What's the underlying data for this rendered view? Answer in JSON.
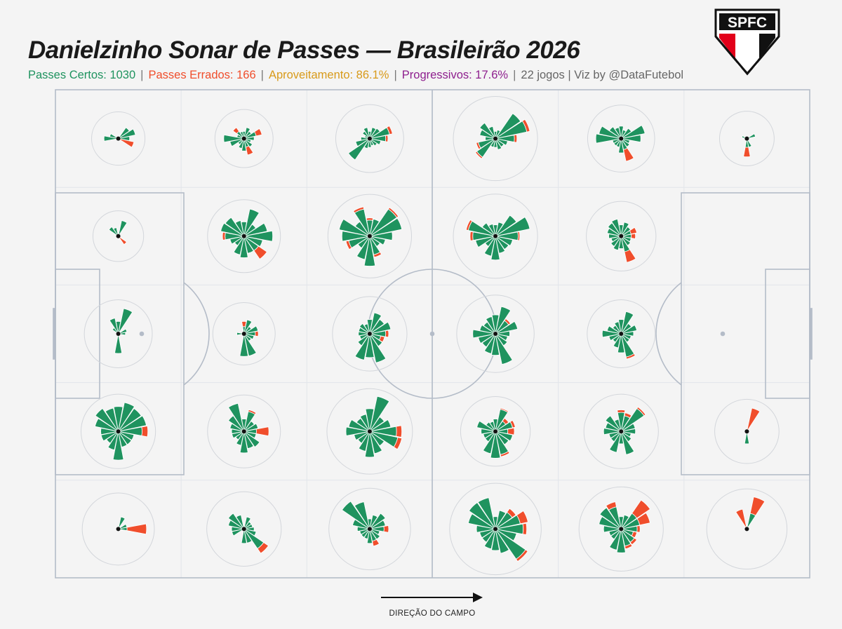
{
  "title": "Danielzinho Sonar de Passes — Brasileirão 2026",
  "subtitle": {
    "completed_label": "Passes Certos: 1030",
    "missed_label": "Passes Errados: 166",
    "accuracy_label": "Aproveitamento: 86.1%",
    "progressive_label": "Progressivos: 17.6%",
    "meta_label": "22 jogos | Viz by @DataFutebol",
    "separator": "|"
  },
  "logo": {
    "text": "SPFC"
  },
  "direction_label": "DIREÇÃO DO CAMPO",
  "colors": {
    "completed": "#1f935f",
    "missed": "#f04e2c",
    "accuracy": "#d89a1a",
    "progressive": "#8e1f8e",
    "meta": "#666666",
    "pitch_lines": "#b4bcc8",
    "background": "#f4f4f4"
  },
  "chart_data": {
    "type": "polar-bar-grid",
    "metric": "passes per direction (completed / missed)",
    "grid": {
      "columns": 6,
      "rows": 5
    },
    "attack_direction": "left-to-right",
    "totals": {
      "completed": 1030,
      "missed": 166,
      "accuracy_pct": 86.1,
      "progressive_pct": 17.6,
      "matches": 22
    },
    "sector_angles_deg": [
      0,
      22.5,
      45,
      67.5,
      90,
      112.5,
      135,
      157.5,
      180,
      202.5,
      225,
      247.5,
      270,
      292.5,
      315,
      337.5
    ],
    "zones": [
      {
        "col": 0,
        "row": 0,
        "completed": [
          5,
          12,
          7,
          0,
          0,
          0,
          0,
          3,
          8,
          0,
          0,
          0,
          0,
          0,
          0,
          0
        ],
        "missed": [
          0,
          0,
          0,
          0,
          0,
          0,
          0,
          0,
          0,
          0,
          0,
          0,
          0,
          0,
          0,
          10
        ]
      },
      {
        "col": 1,
        "row": 0,
        "completed": [
          4,
          6,
          3,
          5,
          2,
          2,
          3,
          2,
          16,
          8,
          2,
          4,
          6,
          3,
          4,
          2
        ],
        "missed": [
          0,
          7,
          0,
          0,
          0,
          0,
          4,
          0,
          0,
          0,
          0,
          0,
          0,
          8,
          0,
          0
        ]
      },
      {
        "col": 2,
        "row": 0,
        "completed": [
          10,
          16,
          6,
          5,
          2,
          5,
          3,
          1,
          3,
          8,
          26,
          4,
          3,
          2,
          3,
          5
        ],
        "missed": [
          3,
          5,
          0,
          0,
          0,
          0,
          0,
          0,
          0,
          0,
          0,
          0,
          0,
          0,
          0,
          0
        ]
      },
      {
        "col": 3,
        "row": 0,
        "completed": [
          14,
          40,
          36,
          3,
          2,
          6,
          14,
          10,
          4,
          12,
          20,
          3,
          3,
          5,
          4,
          6
        ],
        "missed": [
          4,
          8,
          0,
          0,
          0,
          0,
          0,
          0,
          0,
          3,
          3,
          0,
          0,
          0,
          0,
          0
        ]
      },
      {
        "col": 4,
        "row": 0,
        "completed": [
          15,
          23,
          6,
          3,
          6,
          5,
          8,
          20,
          25,
          3,
          3,
          3,
          8,
          5,
          4,
          3
        ],
        "missed": [
          0,
          0,
          0,
          0,
          0,
          0,
          0,
          0,
          0,
          0,
          0,
          0,
          0,
          16,
          0,
          0
        ]
      },
      {
        "col": 5,
        "row": 0,
        "completed": [
          0,
          3,
          0,
          0,
          0,
          0,
          0,
          1,
          0,
          0,
          0,
          0,
          3,
          3,
          0,
          0
        ],
        "missed": [
          0,
          0,
          0,
          0,
          0,
          0,
          0,
          0,
          0,
          0,
          0,
          0,
          10,
          0,
          0,
          0
        ]
      },
      {
        "col": 0,
        "row": 1,
        "completed": [
          0,
          0,
          0,
          10,
          0,
          3,
          5,
          0,
          0,
          0,
          0,
          0,
          0,
          0,
          0,
          0
        ],
        "missed": [
          0,
          0,
          0,
          0,
          0,
          0,
          0,
          0,
          0,
          0,
          0,
          0,
          0,
          0,
          4,
          0
        ]
      },
      {
        "col": 1,
        "row": 1,
        "completed": [
          32,
          22,
          8,
          30,
          8,
          10,
          20,
          22,
          14,
          8,
          5,
          14,
          18,
          12,
          12,
          14
        ],
        "missed": [
          0,
          0,
          0,
          0,
          0,
          0,
          0,
          0,
          4,
          0,
          0,
          0,
          0,
          0,
          18,
          0
        ]
      },
      {
        "col": 2,
        "row": 1,
        "completed": [
          20,
          42,
          42,
          12,
          10,
          30,
          12,
          38,
          30,
          18,
          8,
          22,
          35,
          14,
          6,
          10
        ],
        "missed": [
          0,
          0,
          5,
          0,
          3,
          5,
          0,
          0,
          0,
          5,
          0,
          0,
          0,
          4,
          0,
          0
        ]
      },
      {
        "col": 3,
        "row": 1,
        "completed": [
          20,
          48,
          25,
          8,
          5,
          6,
          10,
          30,
          20,
          16,
          6,
          16,
          22,
          12,
          10,
          12
        ],
        "missed": [
          3,
          0,
          0,
          0,
          0,
          0,
          0,
          5,
          5,
          0,
          0,
          0,
          0,
          0,
          0,
          0
        ]
      },
      {
        "col": 4,
        "row": 1,
        "completed": [
          4,
          4,
          5,
          8,
          5,
          12,
          10,
          8,
          6,
          4,
          6,
          8,
          6,
          10,
          5,
          4
        ],
        "missed": [
          4,
          6,
          0,
          0,
          0,
          0,
          0,
          0,
          0,
          0,
          0,
          0,
          0,
          18,
          0,
          0
        ]
      },
      {
        "col": 5,
        "row": 1,
        "completed": [
          0,
          0,
          0,
          0,
          0,
          0,
          0,
          0,
          0,
          0,
          0,
          0,
          0,
          0,
          0,
          0
        ],
        "missed": [
          0,
          0,
          0,
          0,
          0,
          0,
          0,
          0,
          0,
          0,
          0,
          0,
          0,
          0,
          0,
          0
        ]
      },
      {
        "col": 0,
        "row": 2,
        "completed": [
          2,
          3,
          0,
          26,
          6,
          10,
          2,
          0,
          0,
          0,
          0,
          0,
          15,
          0,
          0,
          0
        ],
        "missed": [
          0,
          0,
          0,
          0,
          0,
          0,
          0,
          0,
          0,
          0,
          0,
          0,
          0,
          0,
          0,
          0
        ]
      },
      {
        "col": 1,
        "row": 2,
        "completed": [
          5,
          8,
          3,
          8,
          2,
          0,
          0,
          0,
          2,
          0,
          0,
          0,
          20,
          20,
          3,
          4
        ],
        "missed": [
          3,
          0,
          0,
          0,
          4,
          0,
          0,
          0,
          0,
          0,
          0,
          0,
          0,
          0,
          0,
          0
        ]
      },
      {
        "col": 2,
        "row": 2,
        "completed": [
          10,
          18,
          12,
          18,
          8,
          4,
          6,
          5,
          5,
          4,
          8,
          28,
          22,
          34,
          9,
          5
        ],
        "missed": [
          4,
          0,
          0,
          0,
          0,
          0,
          0,
          0,
          0,
          0,
          0,
          0,
          0,
          0,
          0,
          4
        ]
      },
      {
        "col": 3,
        "row": 2,
        "completed": [
          8,
          20,
          10,
          30,
          14,
          12,
          8,
          10,
          20,
          12,
          10,
          16,
          18,
          38,
          8,
          6
        ],
        "missed": [
          0,
          0,
          3,
          0,
          0,
          0,
          0,
          0,
          0,
          0,
          0,
          0,
          0,
          0,
          0,
          0
        ]
      },
      {
        "col": 4,
        "row": 2,
        "completed": [
          6,
          10,
          6,
          20,
          8,
          6,
          4,
          8,
          14,
          6,
          4,
          8,
          14,
          22,
          4,
          4
        ],
        "missed": [
          0,
          0,
          0,
          0,
          0,
          0,
          0,
          0,
          0,
          0,
          0,
          0,
          0,
          4,
          0,
          0
        ]
      },
      {
        "col": 5,
        "row": 2,
        "completed": [
          0,
          0,
          0,
          0,
          0,
          0,
          0,
          0,
          0,
          0,
          0,
          0,
          0,
          0,
          0,
          0
        ],
        "missed": [
          0,
          0,
          0,
          0,
          0,
          0,
          0,
          0,
          0,
          0,
          0,
          0,
          0,
          0,
          0,
          0
        ]
      },
      {
        "col": 0,
        "row": 3,
        "completed": [
          22,
          32,
          30,
          34,
          24,
          22,
          30,
          22,
          12,
          12,
          8,
          14,
          32,
          10,
          10,
          10
        ],
        "missed": [
          12,
          0,
          0,
          0,
          0,
          0,
          0,
          0,
          0,
          0,
          0,
          0,
          0,
          0,
          0,
          0
        ]
      },
      {
        "col": 1,
        "row": 3,
        "completed": [
          6,
          8,
          6,
          16,
          6,
          32,
          14,
          8,
          6,
          6,
          4,
          8,
          18,
          12,
          14,
          6
        ],
        "missed": [
          18,
          0,
          0,
          3,
          0,
          0,
          0,
          0,
          0,
          0,
          0,
          0,
          0,
          0,
          0,
          0
        ]
      },
      {
        "col": 2,
        "row": 3,
        "completed": [
          28,
          18,
          12,
          50,
          20,
          12,
          10,
          18,
          22,
          10,
          8,
          16,
          26,
          20,
          12,
          32
        ],
        "missed": [
          12,
          0,
          0,
          0,
          0,
          0,
          0,
          0,
          0,
          0,
          0,
          0,
          0,
          0,
          0,
          10
        ]
      },
      {
        "col": 3,
        "row": 3,
        "completed": [
          6,
          12,
          6,
          20,
          6,
          4,
          5,
          14,
          8,
          6,
          6,
          20,
          28,
          22,
          10,
          12
        ],
        "missed": [
          8,
          4,
          4,
          2,
          0,
          0,
          0,
          0,
          0,
          0,
          0,
          0,
          0,
          4,
          0,
          0
        ]
      },
      {
        "col": 4,
        "row": 3,
        "completed": [
          8,
          8,
          30,
          10,
          14,
          6,
          14,
          10,
          12,
          6,
          6,
          18,
          6,
          22,
          6,
          4
        ],
        "missed": [
          0,
          0,
          4,
          4,
          4,
          0,
          0,
          0,
          0,
          0,
          0,
          0,
          0,
          0,
          0,
          0
        ]
      },
      {
        "col": 5,
        "row": 3,
        "completed": [
          0,
          0,
          0,
          0,
          0,
          0,
          0,
          0,
          0,
          0,
          0,
          0,
          6,
          0,
          0,
          0
        ],
        "missed": [
          0,
          0,
          0,
          22,
          0,
          0,
          0,
          0,
          0,
          0,
          0,
          0,
          0,
          0,
          0,
          0
        ]
      },
      {
        "col": 0,
        "row": 4,
        "completed": [
          3,
          3,
          0,
          6,
          0,
          0,
          0,
          0,
          0,
          0,
          0,
          0,
          0,
          0,
          0,
          0
        ],
        "missed": [
          28,
          0,
          0,
          0,
          0,
          0,
          0,
          0,
          0,
          0,
          0,
          0,
          0,
          0,
          0,
          0
        ]
      },
      {
        "col": 1,
        "row": 4,
        "completed": [
          4,
          3,
          3,
          6,
          0,
          8,
          14,
          10,
          6,
          6,
          0,
          0,
          8,
          8,
          22,
          6
        ],
        "missed": [
          0,
          0,
          0,
          0,
          0,
          0,
          0,
          0,
          0,
          0,
          0,
          0,
          0,
          0,
          12,
          0
        ]
      },
      {
        "col": 2,
        "row": 4,
        "completed": [
          8,
          10,
          14,
          8,
          4,
          30,
          44,
          12,
          6,
          4,
          4,
          4,
          8,
          6,
          6,
          4
        ],
        "missed": [
          6,
          0,
          0,
          0,
          0,
          0,
          0,
          0,
          0,
          0,
          0,
          0,
          0,
          6,
          0,
          0
        ]
      },
      {
        "col": 3,
        "row": 4,
        "completed": [
          30,
          25,
          16,
          14,
          6,
          40,
          40,
          30,
          14,
          10,
          10,
          16,
          18,
          24,
          52,
          18
        ],
        "missed": [
          8,
          18,
          8,
          0,
          0,
          0,
          0,
          0,
          0,
          0,
          0,
          0,
          0,
          0,
          8,
          0
        ]
      },
      {
        "col": 4,
        "row": 4,
        "completed": [
          10,
          14,
          14,
          8,
          6,
          20,
          26,
          20,
          12,
          6,
          6,
          18,
          22,
          12,
          10,
          6
        ],
        "missed": [
          4,
          20,
          34,
          0,
          0,
          10,
          0,
          0,
          0,
          0,
          0,
          0,
          0,
          4,
          4,
          4
        ]
      },
      {
        "col": 5,
        "row": 4,
        "completed": [
          0,
          0,
          0,
          10,
          0,
          0,
          0,
          0,
          0,
          0,
          0,
          0,
          0,
          0,
          0,
          0
        ],
        "missed": [
          0,
          0,
          0,
          32,
          0,
          16,
          0,
          0,
          0,
          0,
          0,
          0,
          0,
          0,
          0,
          0
        ]
      }
    ]
  }
}
